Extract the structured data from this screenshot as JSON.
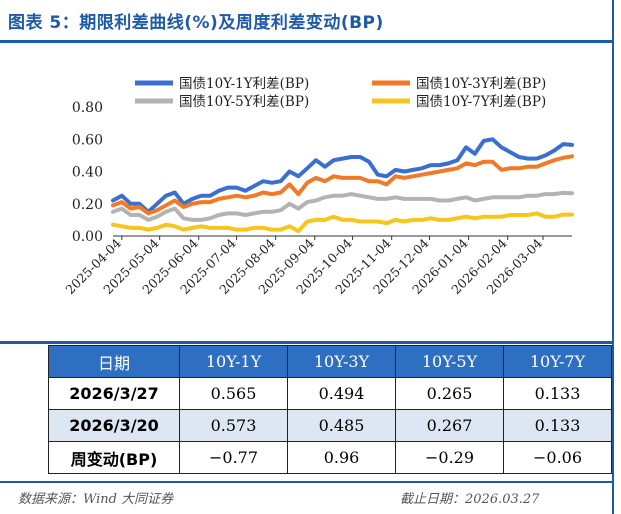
{
  "title": "图表 5：期限利差曲线(%)及周度利差变动(BP)",
  "chart_data": {
    "type": "line",
    "ylim": [
      0,
      0.8
    ],
    "yticks": [
      "0.00",
      "0.20",
      "0.40",
      "0.60",
      "0.80"
    ],
    "xlabels": [
      "2025-04-04",
      "2025-05-04",
      "2025-06-04",
      "2025-07-04",
      "2025-08-04",
      "2025-09-04",
      "2025-10-04",
      "2025-11-04",
      "2025-12-04",
      "2026-01-04",
      "2026-02-04",
      "2026-03-04"
    ],
    "x": [
      "2025-03-28",
      "2025-04-04",
      "2025-04-11",
      "2025-04-18",
      "2025-04-25",
      "2025-05-02",
      "2025-05-09",
      "2025-05-16",
      "2025-05-23",
      "2025-05-30",
      "2025-06-06",
      "2025-06-13",
      "2025-06-20",
      "2025-06-27",
      "2025-07-04",
      "2025-07-11",
      "2025-07-18",
      "2025-07-25",
      "2025-08-01",
      "2025-08-08",
      "2025-08-15",
      "2025-08-22",
      "2025-08-29",
      "2025-09-05",
      "2025-09-12",
      "2025-09-19",
      "2025-09-26",
      "2025-10-03",
      "2025-10-10",
      "2025-10-17",
      "2025-10-24",
      "2025-10-31",
      "2025-11-07",
      "2025-11-14",
      "2025-11-21",
      "2025-11-28",
      "2025-12-05",
      "2025-12-12",
      "2025-12-19",
      "2025-12-26",
      "2026-01-02",
      "2026-01-09",
      "2026-01-16",
      "2026-01-23",
      "2026-01-30",
      "2026-02-06",
      "2026-02-13",
      "2026-02-20",
      "2026-02-27",
      "2026-03-06",
      "2026-03-13",
      "2026-03-20",
      "2026-03-27"
    ],
    "series": [
      {
        "name": "国债10Y-1Y利差(BP)",
        "color": "#3a6fd0",
        "values": [
          0.22,
          0.25,
          0.2,
          0.2,
          0.15,
          0.2,
          0.25,
          0.27,
          0.2,
          0.23,
          0.25,
          0.25,
          0.28,
          0.3,
          0.3,
          0.28,
          0.31,
          0.34,
          0.33,
          0.34,
          0.4,
          0.37,
          0.42,
          0.47,
          0.43,
          0.47,
          0.48,
          0.49,
          0.49,
          0.46,
          0.38,
          0.37,
          0.41,
          0.4,
          0.41,
          0.42,
          0.44,
          0.44,
          0.45,
          0.47,
          0.55,
          0.51,
          0.59,
          0.6,
          0.55,
          0.52,
          0.49,
          0.48,
          0.48,
          0.5,
          0.53,
          0.57,
          0.565
        ]
      },
      {
        "name": "国债10Y-3Y利差(BP)",
        "color": "#f07a28",
        "values": [
          0.19,
          0.21,
          0.17,
          0.18,
          0.14,
          0.16,
          0.19,
          0.22,
          0.18,
          0.2,
          0.21,
          0.21,
          0.23,
          0.24,
          0.25,
          0.24,
          0.25,
          0.27,
          0.26,
          0.27,
          0.32,
          0.26,
          0.33,
          0.36,
          0.34,
          0.37,
          0.36,
          0.36,
          0.36,
          0.34,
          0.34,
          0.32,
          0.37,
          0.36,
          0.37,
          0.38,
          0.39,
          0.4,
          0.41,
          0.42,
          0.45,
          0.44,
          0.46,
          0.46,
          0.41,
          0.42,
          0.42,
          0.43,
          0.43,
          0.45,
          0.47,
          0.485,
          0.494
        ]
      },
      {
        "name": "国债10Y-5Y利差(BP)",
        "color": "#b3b3b3",
        "values": [
          0.15,
          0.17,
          0.13,
          0.13,
          0.1,
          0.12,
          0.15,
          0.17,
          0.11,
          0.1,
          0.1,
          0.11,
          0.13,
          0.14,
          0.14,
          0.13,
          0.14,
          0.15,
          0.15,
          0.16,
          0.2,
          0.17,
          0.21,
          0.22,
          0.24,
          0.25,
          0.25,
          0.26,
          0.25,
          0.24,
          0.23,
          0.23,
          0.24,
          0.23,
          0.23,
          0.23,
          0.23,
          0.22,
          0.22,
          0.23,
          0.24,
          0.22,
          0.23,
          0.24,
          0.24,
          0.24,
          0.24,
          0.25,
          0.25,
          0.26,
          0.26,
          0.267,
          0.265
        ]
      },
      {
        "name": "国债10Y-7Y利差(BP)",
        "color": "#f7c51c",
        "values": [
          0.07,
          0.06,
          0.05,
          0.05,
          0.04,
          0.05,
          0.07,
          0.06,
          0.04,
          0.05,
          0.06,
          0.05,
          0.05,
          0.05,
          0.04,
          0.04,
          0.05,
          0.05,
          0.04,
          0.04,
          0.06,
          0.03,
          0.09,
          0.1,
          0.1,
          0.12,
          0.1,
          0.1,
          0.09,
          0.09,
          0.09,
          0.08,
          0.1,
          0.09,
          0.1,
          0.1,
          0.11,
          0.1,
          0.1,
          0.11,
          0.12,
          0.11,
          0.12,
          0.12,
          0.12,
          0.13,
          0.13,
          0.13,
          0.14,
          0.12,
          0.12,
          0.133,
          0.133
        ]
      }
    ]
  },
  "table": {
    "headers": [
      "日期",
      "10Y-1Y",
      "10Y-3Y",
      "10Y-5Y",
      "10Y-7Y"
    ],
    "rows": [
      [
        "2026/3/27",
        "0.565",
        "0.494",
        "0.265",
        "0.133"
      ],
      [
        "2026/3/20",
        "0.573",
        "0.485",
        "0.267",
        "0.133"
      ],
      [
        "周变动(BP)",
        "−0.77",
        "0.96",
        "−0.29",
        "−0.06"
      ]
    ]
  },
  "footer": {
    "source": "数据来源：Wind 大同证券",
    "deadline": "截止日期：2026.03.27"
  }
}
